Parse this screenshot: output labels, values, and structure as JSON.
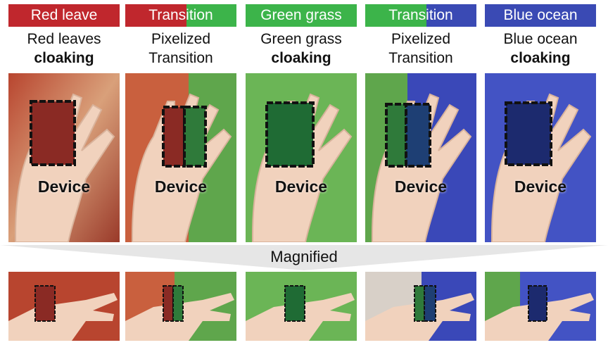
{
  "panels": [
    {
      "banner": "Red leave",
      "caption_line1": "Red leaves",
      "caption_line2": "cloaking",
      "device_label": "Device",
      "bg_colors": [
        "#b8452f",
        "#d9a07a"
      ],
      "device_color": "#8a2a24",
      "banner_colors": [
        "#c0272d",
        "#c0272d"
      ]
    },
    {
      "banner": "Transition",
      "caption_line1": "Pixelized",
      "caption_line2": "Transition",
      "device_label": "Device",
      "bg_colors": [
        "#c9603e",
        "#5fa64c"
      ],
      "device_color": "#2f7a3a",
      "banner_colors": [
        "#c0272d",
        "#3cb44a"
      ]
    },
    {
      "banner": "Green grass",
      "caption_line1": "Green grass",
      "caption_line2": "cloaking",
      "device_label": "Device",
      "bg_colors": [
        "#58a94a",
        "#7cc163"
      ],
      "device_color": "#1f6b34",
      "banner_colors": [
        "#3cb44a",
        "#3cb44a"
      ]
    },
    {
      "banner": "Transition",
      "caption_line1": "Pixelized",
      "caption_line2": "Transition",
      "device_label": "Device",
      "bg_colors": [
        "#5fa64c",
        "#3a48b8"
      ],
      "device_color": "#1e3f74",
      "banner_colors": [
        "#3cb44a",
        "#3a4ab4"
      ]
    },
    {
      "banner": "Blue ocean",
      "caption_line1": "Blue ocean",
      "caption_line2": "cloaking",
      "device_label": "Device",
      "bg_colors": [
        "#3a48b8",
        "#4e5fcf"
      ],
      "device_color": "#1c2a6e",
      "banner_colors": [
        "#3a4ab4",
        "#3a4ab4"
      ]
    }
  ],
  "magnified_label": "Magnified",
  "colors": {
    "skin": "#f1d2bd",
    "skin_shadow": "#d9b39c",
    "white": "#ffffff"
  }
}
